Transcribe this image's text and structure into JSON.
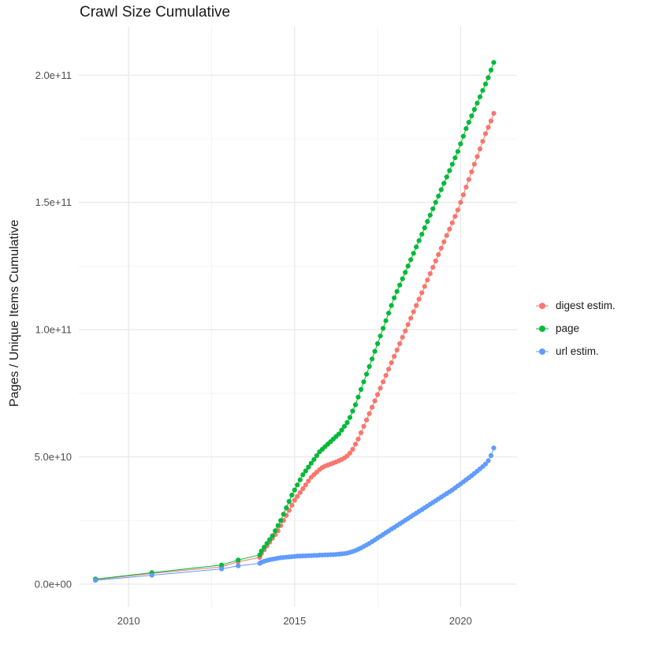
{
  "chart_data": {
    "type": "scatter",
    "title": "Crawl Size Cumulative",
    "xlabel": "",
    "ylabel": "Pages / Unique Items Cumulative",
    "legend_position": "right",
    "grid": true,
    "background_color": "#FFFFFF",
    "grid_major_color": "#E8E8E8",
    "grid_minor_color": "#F4F4F4",
    "tick_label_color": "#4D4D4D",
    "x_domain": [
      2008.5,
      2021.7
    ],
    "y_domain_billions": [
      -9,
      219
    ],
    "y_unit_note": "point values stored in billions (1e9)",
    "x_ticks": [
      {
        "v": 2010,
        "label": "2010"
      },
      {
        "v": 2015,
        "label": "2015"
      },
      {
        "v": 2020,
        "label": "2020"
      }
    ],
    "y_ticks": [
      {
        "v": 0,
        "label": "0.0e+00"
      },
      {
        "v": 50,
        "label": "5.0e+10"
      },
      {
        "v": 100,
        "label": "1.0e+11"
      },
      {
        "v": 150,
        "label": "1.5e+11"
      },
      {
        "v": 200,
        "label": "2.0e+11"
      }
    ],
    "x_minor": [
      2012.5,
      2017.5
    ],
    "y_minor_billions": [
      25,
      75,
      125,
      175
    ],
    "series": [
      {
        "name": "digest estim.",
        "color": "#F8766D",
        "early_points": [
          [
            2009.0,
            1.8
          ],
          [
            2010.7,
            4.2
          ],
          [
            2012.8,
            6.8
          ],
          [
            2013.3,
            8.8
          ],
          [
            2013.95,
            10.5
          ]
        ],
        "monthly_start_year": 2014.0,
        "monthly_values_billions": [
          12,
          13.5,
          15,
          16.5,
          18,
          19.5,
          21,
          23,
          25,
          27,
          29,
          31,
          33,
          34.5,
          36,
          37.5,
          39,
          40.5,
          42,
          43,
          44,
          45,
          45.8,
          46.4,
          46.8,
          47.2,
          47.6,
          48,
          48.5,
          49,
          49.6,
          50.4,
          51.5,
          53,
          55,
          57,
          59.5,
          62,
          64.5,
          67,
          69.5,
          72,
          74.5,
          77,
          79.5,
          82,
          84.5,
          87,
          89.5,
          92,
          94.5,
          97,
          99.5,
          102,
          104.5,
          107,
          109.5,
          112,
          114.5,
          117,
          119.5,
          122,
          124.5,
          127,
          129.5,
          132,
          134.5,
          137,
          139.5,
          142,
          144.5,
          147,
          150,
          153,
          156,
          159,
          162,
          165,
          168,
          171,
          174,
          177,
          179.5,
          182,
          185
        ]
      },
      {
        "name": "page",
        "color": "#00BA38",
        "early_points": [
          [
            2009.0,
            2.0
          ],
          [
            2010.7,
            4.5
          ],
          [
            2012.8,
            7.5
          ],
          [
            2013.3,
            9.5
          ],
          [
            2013.95,
            11.5
          ]
        ],
        "monthly_start_year": 2014.0,
        "monthly_values_billions": [
          13,
          14.5,
          16,
          17.5,
          19,
          21,
          23,
          25,
          27.5,
          30,
          32.5,
          35,
          37,
          39,
          41,
          43,
          44.5,
          46,
          47.5,
          49,
          50.5,
          52,
          53,
          54,
          55,
          56,
          57,
          58,
          59,
          60.5,
          62,
          63.5,
          65.5,
          68,
          70.5,
          73.5,
          76.5,
          79.5,
          82.5,
          85.5,
          88.5,
          91.5,
          94.5,
          97.5,
          100.5,
          103.5,
          106.5,
          109.5,
          112.5,
          115,
          117.5,
          120,
          122.5,
          125,
          127.5,
          130,
          132.5,
          135,
          137.5,
          140,
          142.5,
          145,
          147.5,
          150,
          152.5,
          155,
          157.5,
          160,
          162.5,
          165,
          167.5,
          170,
          173,
          176,
          179,
          181.5,
          184,
          186.5,
          189,
          191.5,
          194,
          196.5,
          199,
          202,
          205
        ]
      },
      {
        "name": "url estim.",
        "color": "#619CFF",
        "early_points": [
          [
            2009.0,
            1.5
          ],
          [
            2010.7,
            3.5
          ],
          [
            2012.8,
            6.0
          ],
          [
            2013.3,
            7.2
          ],
          [
            2013.95,
            8.2
          ]
        ],
        "monthly_start_year": 2014.0,
        "monthly_values_billions": [
          8.6,
          9,
          9.3,
          9.6,
          9.8,
          10,
          10.2,
          10.4,
          10.5,
          10.6,
          10.7,
          10.8,
          10.9,
          11,
          11,
          11.1,
          11.1,
          11.2,
          11.2,
          11.3,
          11.3,
          11.4,
          11.4,
          11.5,
          11.5,
          11.6,
          11.6,
          11.7,
          11.8,
          11.9,
          12,
          12.2,
          12.5,
          12.8,
          13.2,
          13.7,
          14.2,
          14.8,
          15.4,
          16,
          16.7,
          17.4,
          18.1,
          18.8,
          19.5,
          20.2,
          20.9,
          21.6,
          22.3,
          23,
          23.7,
          24.4,
          25.1,
          25.8,
          26.5,
          27.2,
          27.9,
          28.6,
          29.3,
          30,
          30.7,
          31.4,
          32.1,
          32.8,
          33.5,
          34.2,
          34.9,
          35.6,
          36.3,
          37,
          37.8,
          38.6,
          39.4,
          40.2,
          41,
          41.8,
          42.6,
          43.5,
          44.4,
          45.3,
          46.2,
          47.2,
          48.5,
          50.5,
          53.5
        ]
      }
    ]
  }
}
